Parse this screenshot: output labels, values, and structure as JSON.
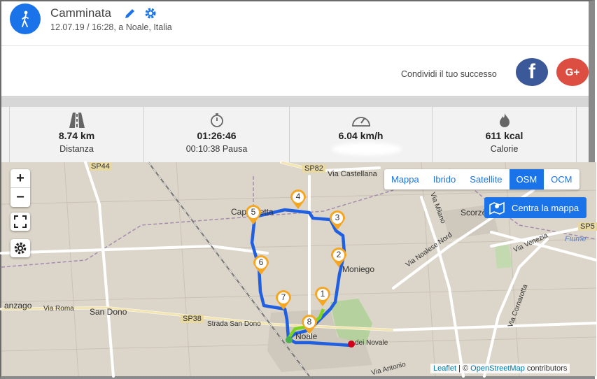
{
  "activity": {
    "title": "Camminata",
    "subtitle": "12.07.19 / 16:28, a Noale, Italia",
    "icon": "walking-person-icon",
    "accent": "#1a73e8"
  },
  "share": {
    "label": "Condividi il tuo successo",
    "facebook": "f",
    "google": "G+"
  },
  "stats": [
    {
      "icon": "road-icon",
      "value": "8.74 km",
      "label": "Distanza"
    },
    {
      "icon": "stopwatch-icon",
      "value": "01:26:46",
      "label": "00:10:38 Pausa"
    },
    {
      "icon": "speedometer-icon",
      "value": "6.04 km/h",
      "label": ""
    },
    {
      "icon": "flame-icon",
      "value": "611 kcal",
      "label": "Calorie"
    }
  ],
  "map": {
    "zoom_in": "+",
    "zoom_out": "−",
    "layers": [
      "Mappa",
      "Ibrido",
      "Satellite",
      "OSM",
      "OCM"
    ],
    "active_layer": "OSM",
    "center_label": "Centra la mappa",
    "attribution_leaflet": "Leaflet",
    "attribution_sep": " | © ",
    "attribution_osm": "OpenStreetMap",
    "attribution_suffix": " contributors",
    "waypoints": [
      "1",
      "2",
      "3",
      "4",
      "5",
      "6",
      "7",
      "8"
    ],
    "place_labels": {
      "sp44": "SP44",
      "sp82": "SP82",
      "via_castellana": "Via Castellana",
      "capriccetta": "Cappelletta",
      "scorze": "Scorzè",
      "moniego": "Moniego",
      "san_dono": "San Dono",
      "sp38": "SP38",
      "strada_san_dono": "Strada San Dono",
      "via_roma": "Via Roma",
      "anzago": "anzago",
      "noale": "Noale",
      "via_noalese_nord": "Via Noalese Nord",
      "via_venezia": "Via Venezia",
      "via_milano": "Via Milano",
      "via_cornarotta": "Via Cornarotta",
      "fiume": "Fiume",
      "dei_novale": "dei Novale",
      "sp5": "SP5",
      "via_antonio": "Via Antonio"
    },
    "route_color": "#1f5fe0",
    "marker_color": "#f5a623"
  }
}
